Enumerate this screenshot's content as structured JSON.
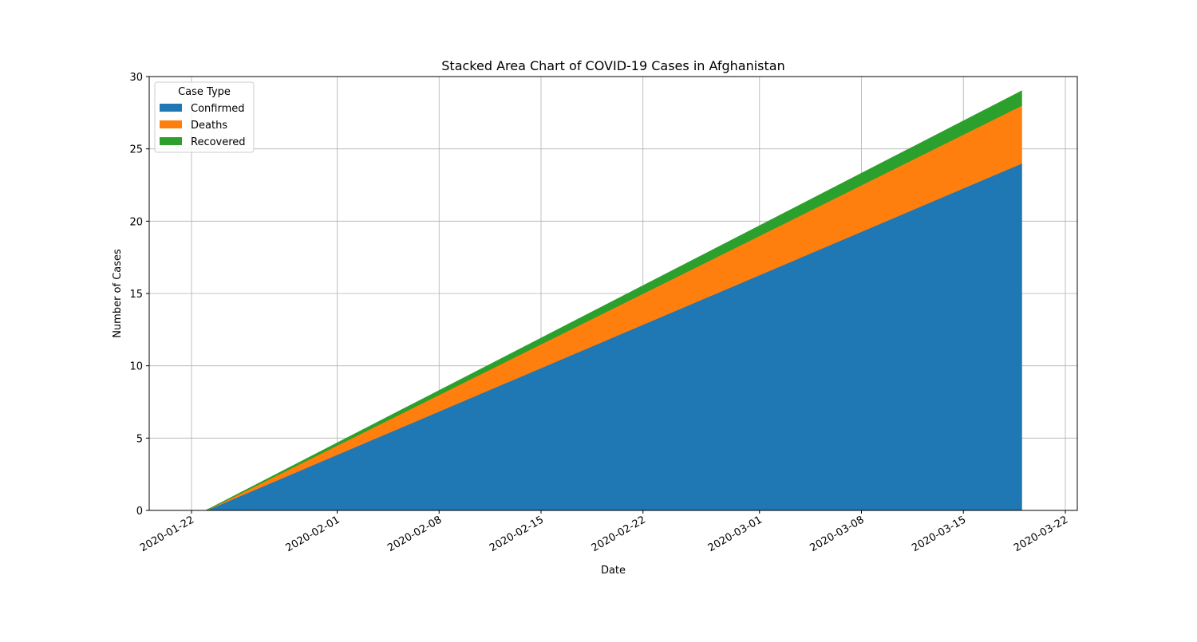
{
  "chart_data": {
    "type": "area",
    "stacked": true,
    "title": "Stacked Area Chart of COVID-19 Cases in Afghanistan",
    "xlabel": "Date",
    "ylabel": "Number of Cases",
    "x": [
      "2020-01-22",
      "2020-01-23",
      "2020-03-19"
    ],
    "series": [
      {
        "name": "Confirmed",
        "color": "#1f77b4",
        "values": [
          0,
          0,
          24
        ]
      },
      {
        "name": "Deaths",
        "color": "#ff7f0e",
        "values": [
          0,
          0,
          4
        ]
      },
      {
        "name": "Recovered",
        "color": "#2ca02c",
        "values": [
          0,
          0,
          1
        ]
      }
    ],
    "xlim": [
      "2020-01-22",
      "2020-03-22"
    ],
    "ylim": [
      0,
      30
    ],
    "x_ticks": [
      "2020-01-22",
      "2020-02-01",
      "2020-02-08",
      "2020-02-15",
      "2020-02-22",
      "2020-03-01",
      "2020-03-08",
      "2020-03-15",
      "2020-03-22"
    ],
    "y_ticks": [
      0,
      5,
      10,
      15,
      20,
      25,
      30
    ],
    "grid": true,
    "legend": {
      "title": "Case Type",
      "placement": "top-left"
    }
  }
}
